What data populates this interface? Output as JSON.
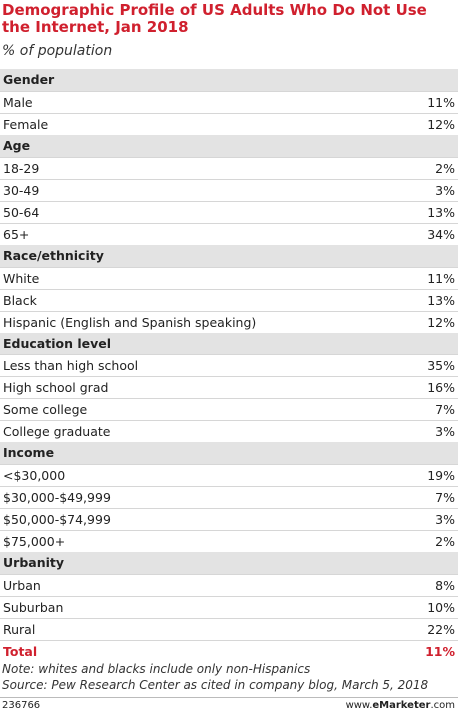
{
  "header": {
    "title": "Demographic Profile of US Adults Who Do Not Use the Internet, Jan 2018",
    "subtitle": "% of population"
  },
  "table": {
    "sections": [
      {
        "label": "Gender",
        "rows": [
          {
            "label": "Male",
            "value": "11%"
          },
          {
            "label": "Female",
            "value": "12%"
          }
        ]
      },
      {
        "label": "Age",
        "rows": [
          {
            "label": "18-29",
            "value": "2%"
          },
          {
            "label": "30-49",
            "value": "3%"
          },
          {
            "label": "50-64",
            "value": "13%"
          },
          {
            "label": "65+",
            "value": "34%"
          }
        ]
      },
      {
        "label": "Race/ethnicity",
        "rows": [
          {
            "label": "White",
            "value": "11%"
          },
          {
            "label": "Black",
            "value": "13%"
          },
          {
            "label": "Hispanic (English and Spanish speaking)",
            "value": "12%"
          }
        ]
      },
      {
        "label": "Education level",
        "rows": [
          {
            "label": "Less than high school",
            "value": "35%"
          },
          {
            "label": "High school grad",
            "value": "16%"
          },
          {
            "label": "Some college",
            "value": "7%"
          },
          {
            "label": "College graduate",
            "value": "3%"
          }
        ]
      },
      {
        "label": "Income",
        "rows": [
          {
            "label": "<$30,000",
            "value": "19%"
          },
          {
            "label": "$30,000-$49,999",
            "value": "7%"
          },
          {
            "label": "$50,000-$74,999",
            "value": "3%"
          },
          {
            "label": "$75,000+",
            "value": "2%"
          }
        ]
      },
      {
        "label": "Urbanity",
        "rows": [
          {
            "label": "Urban",
            "value": "8%"
          },
          {
            "label": "Suburban",
            "value": "10%"
          },
          {
            "label": "Rural",
            "value": "22%"
          }
        ]
      }
    ],
    "total": {
      "label": "Total",
      "value": "11%"
    }
  },
  "notes": [
    "Note: whites and blacks include only non-Hispanics",
    "Source: Pew Research Center as cited in company blog, March 5, 2018"
  ],
  "footer": {
    "id": "236766",
    "site_prefix": "www.",
    "site_brand": "eMarketer",
    "site_suffix": ".com"
  }
}
